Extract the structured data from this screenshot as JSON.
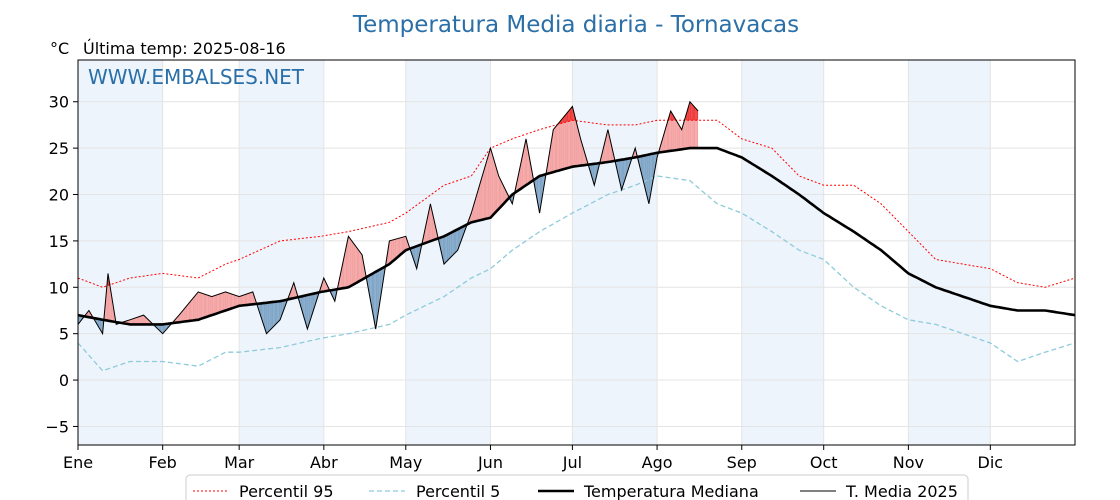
{
  "chart_data": {
    "type": "line",
    "title": "Temperatura Media diaria - Tornavacas",
    "unit_label": "°C",
    "last_update": "Última temp: 2025-08-16",
    "watermark": "WWW.EMBALSES.NET",
    "ylim": [
      -7,
      34.5
    ],
    "xlim": [
      1,
      366
    ],
    "yticks": [
      -5,
      0,
      5,
      10,
      15,
      20,
      25,
      30
    ],
    "ytick_labels": [
      "−5",
      "0",
      "5",
      "10",
      "15",
      "20",
      "25",
      "30"
    ],
    "months": [
      "Ene",
      "Feb",
      "Mar",
      "Abr",
      "May",
      "Jun",
      "Jul",
      "Ago",
      "Sep",
      "Oct",
      "Nov",
      "Dic"
    ],
    "month_start_days": [
      1,
      32,
      60,
      91,
      121,
      152,
      182,
      213,
      244,
      274,
      305,
      335
    ],
    "grid": true,
    "legend_position": "bottom-center",
    "colors": {
      "p95": "#ff0000",
      "p5": "#8ecbdc",
      "median": "#000000",
      "current": "#000000",
      "above_fill": "#f3a1a1",
      "above_p95_fill": "#ee3b3b",
      "below_fill": "#7fa5c7",
      "band": "#eef4fb",
      "title": "#2a6fa8"
    },
    "series": [
      {
        "name": "Percentil 95",
        "style": "dotted",
        "anchor_days": [
          1,
          10,
          20,
          32,
          45,
          55,
          60,
          75,
          90,
          100,
          115,
          121,
          135,
          145,
          152,
          160,
          170,
          182,
          195,
          205,
          213,
          225,
          235,
          244,
          255,
          265,
          274,
          285,
          295,
          305,
          315,
          325,
          335,
          345,
          355,
          366
        ],
        "anchor_values": [
          11,
          10,
          11,
          11.5,
          11,
          12.5,
          13,
          15,
          15.5,
          16,
          17,
          18,
          21,
          22,
          25,
          26,
          27,
          28,
          27.5,
          27.5,
          28,
          28,
          28,
          26,
          25,
          22,
          21,
          21,
          19,
          16,
          13,
          12.5,
          12,
          10.5,
          10,
          11
        ]
      },
      {
        "name": "Percentil 5",
        "style": "dashed",
        "anchor_days": [
          1,
          10,
          20,
          32,
          45,
          55,
          60,
          75,
          90,
          100,
          115,
          121,
          135,
          145,
          152,
          160,
          170,
          182,
          195,
          205,
          213,
          225,
          235,
          244,
          255,
          265,
          274,
          285,
          295,
          305,
          315,
          325,
          335,
          345,
          355,
          366
        ],
        "anchor_values": [
          4,
          1,
          2,
          2,
          1.5,
          3,
          3,
          3.5,
          4.5,
          5,
          6,
          7,
          9,
          11,
          12,
          14,
          16,
          18,
          20,
          21,
          22,
          21.5,
          19,
          18,
          16,
          14,
          13,
          10,
          8,
          6.5,
          6,
          5,
          4,
          2,
          3,
          4
        ]
      },
      {
        "name": "Temperatura Mediana",
        "style": "solid-thick",
        "anchor_days": [
          1,
          10,
          20,
          32,
          45,
          55,
          60,
          75,
          90,
          100,
          115,
          121,
          135,
          145,
          152,
          160,
          170,
          182,
          195,
          205,
          213,
          225,
          235,
          244,
          255,
          265,
          274,
          285,
          295,
          305,
          315,
          325,
          335,
          345,
          355,
          366
        ],
        "anchor_values": [
          7,
          6.5,
          6,
          6,
          6.5,
          7.5,
          8,
          8.5,
          9.5,
          10,
          12.5,
          14,
          15.5,
          17,
          17.5,
          20,
          22,
          23,
          23.5,
          24,
          24.5,
          25,
          25,
          24,
          22,
          20,
          18,
          16,
          14,
          11.5,
          10,
          9,
          8,
          7.5,
          7.5,
          7
        ]
      },
      {
        "name": "T. Media 2025",
        "style": "solid-thin",
        "anchor_days": [
          1,
          5,
          10,
          12,
          15,
          20,
          25,
          32,
          38,
          45,
          50,
          55,
          60,
          65,
          70,
          75,
          80,
          85,
          91,
          95,
          100,
          105,
          110,
          115,
          121,
          125,
          130,
          135,
          140,
          145,
          152,
          155,
          160,
          165,
          170,
          175,
          182,
          185,
          190,
          195,
          200,
          205,
          210,
          213,
          218,
          222,
          225,
          228
        ],
        "anchor_values": [
          6,
          7.5,
          5,
          11.5,
          6,
          6.5,
          7,
          5,
          7,
          9.5,
          9,
          9.5,
          9,
          9.5,
          5,
          6.5,
          10.5,
          5.5,
          11,
          8.5,
          15.5,
          13.5,
          5.5,
          15,
          15.5,
          12,
          19,
          12.5,
          14,
          18,
          25,
          22,
          19,
          26,
          18,
          27,
          29.5,
          26,
          21,
          27,
          20.5,
          25,
          19,
          24,
          29,
          27,
          30,
          29
        ]
      }
    ]
  }
}
